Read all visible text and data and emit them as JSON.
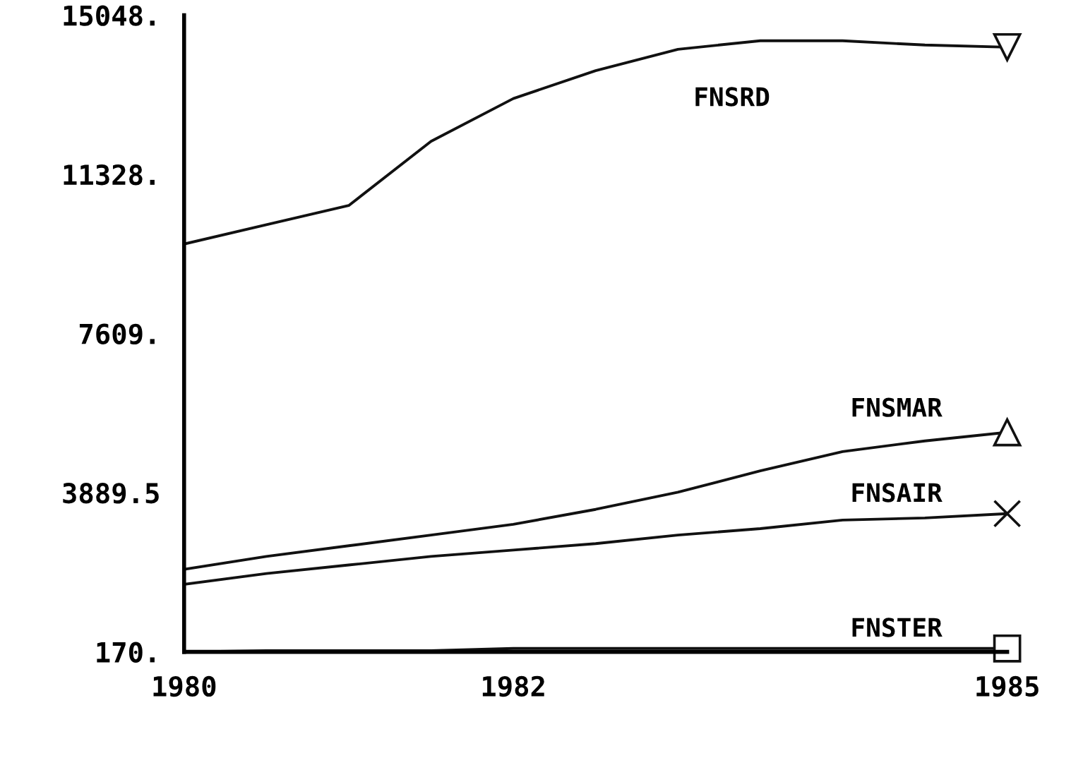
{
  "chart_data": {
    "type": "line",
    "x": [
      1980,
      1980.5,
      1981,
      1981.5,
      1982,
      1982.5,
      1983,
      1983.5,
      1984,
      1984.5,
      1985
    ],
    "series": [
      {
        "name": "FNSRD",
        "color": "#111111",
        "values": [
          9700,
          10150,
          10600,
          12100,
          13100,
          13750,
          14250,
          14450,
          14450,
          14350,
          14300
        ]
      },
      {
        "name": "FNSMAR",
        "color": "#111111",
        "values": [
          2100,
          2400,
          2650,
          2900,
          3150,
          3500,
          3900,
          4400,
          4850,
          5100,
          5300
        ]
      },
      {
        "name": "FNSAIR",
        "color": "#111111",
        "values": [
          1750,
          2000,
          2200,
          2400,
          2550,
          2700,
          2900,
          3050,
          3250,
          3300,
          3400
        ]
      },
      {
        "name": "FNSTER",
        "color": "#111111",
        "values": [
          170,
          200,
          200,
          200,
          250,
          250,
          250,
          250,
          250,
          250,
          250
        ]
      }
    ],
    "xlim": [
      1980,
      1985
    ],
    "xticks": [
      1980,
      1982,
      1985
    ],
    "ylim": [
      170,
      15048
    ],
    "yticks": [
      {
        "value": 170,
        "label": "170."
      },
      3889.5,
      {
        "value": 7609,
        "label": "7609."
      },
      {
        "value": 11328,
        "label": "11328."
      },
      {
        "value": 15048,
        "label": "15048."
      }
    ],
    "grid": false,
    "line_style": "solid"
  }
}
